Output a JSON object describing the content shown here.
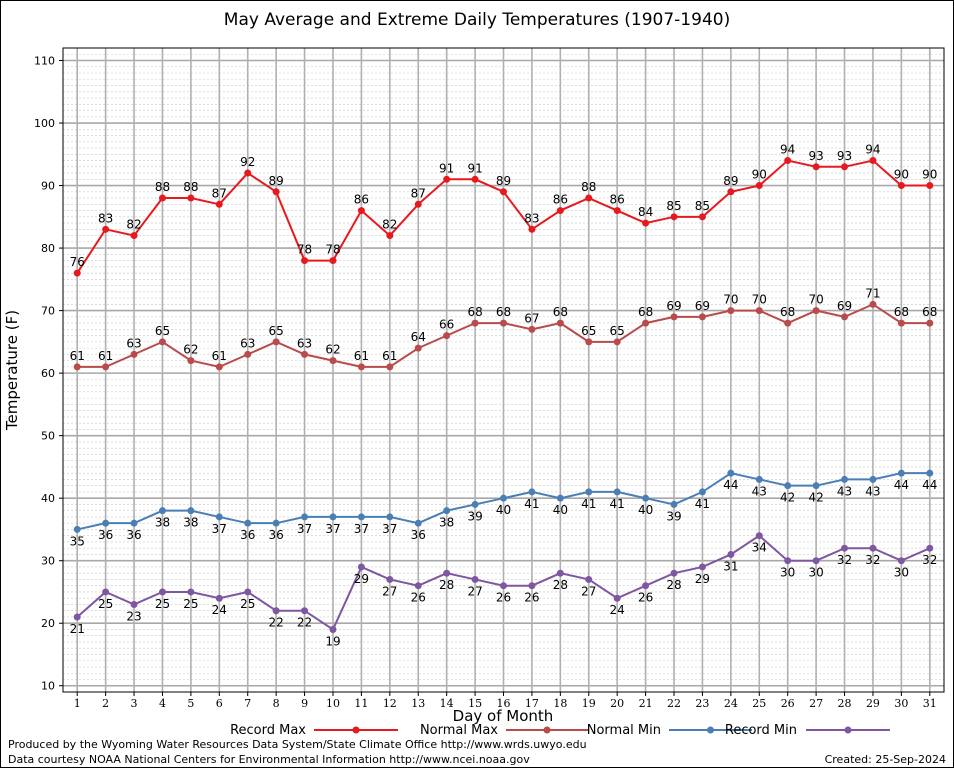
{
  "title": "May Average and Extreme Daily Temperatures (1907-1940)",
  "footer": {
    "produced_by": "Produced by the Wyoming Water Resources Data System/State Climate Office http://www.wrds.uwyo.edu",
    "courtesy": "Data courtesy NOAA National Centers for Environmental Information http://www.ncei.noaa.gov",
    "created": "Created:  25-Sep-2024"
  },
  "chart_data": {
    "type": "line",
    "title": "May Average and Extreme Daily Temperatures (1907-1940)",
    "xlabel": "Day of Month",
    "ylabel": "Temperature (F)",
    "x": [
      1,
      2,
      3,
      4,
      5,
      6,
      7,
      8,
      9,
      10,
      11,
      12,
      13,
      14,
      15,
      16,
      17,
      18,
      19,
      20,
      21,
      22,
      23,
      24,
      25,
      26,
      27,
      28,
      29,
      30,
      31
    ],
    "xlim": [
      0.5,
      31.5
    ],
    "ylim": [
      9,
      112
    ],
    "yticks": [
      10,
      20,
      30,
      40,
      50,
      60,
      70,
      80,
      90,
      100,
      110
    ],
    "grid": true,
    "legend_position": "bottom",
    "series": [
      {
        "name": "Record Max",
        "color": "#e8191e",
        "values": [
          76,
          83,
          82,
          88,
          88,
          87,
          92,
          89,
          78,
          78,
          86,
          82,
          87,
          91,
          91,
          89,
          83,
          86,
          88,
          86,
          84,
          85,
          85,
          89,
          90,
          94,
          93,
          93,
          94,
          90,
          90
        ]
      },
      {
        "name": "Normal Max",
        "color": "#b84b4b",
        "values": [
          61,
          61,
          63,
          65,
          62,
          61,
          63,
          65,
          63,
          62,
          61,
          61,
          64,
          66,
          68,
          68,
          67,
          68,
          65,
          65,
          68,
          69,
          69,
          70,
          70,
          68,
          70,
          69,
          71,
          68,
          68
        ]
      },
      {
        "name": "Normal Min",
        "color": "#4a7fb5",
        "values": [
          35,
          36,
          36,
          38,
          38,
          37,
          36,
          36,
          37,
          37,
          37,
          37,
          36,
          38,
          39,
          40,
          41,
          40,
          41,
          41,
          40,
          39,
          41,
          44,
          43,
          42,
          42,
          43,
          43,
          44,
          44
        ]
      },
      {
        "name": "Record Min",
        "color": "#7e57a0",
        "values": [
          21,
          25,
          23,
          25,
          25,
          24,
          25,
          22,
          22,
          19,
          29,
          27,
          26,
          28,
          27,
          26,
          26,
          28,
          27,
          24,
          26,
          28,
          29,
          31,
          34,
          30,
          30,
          32,
          32,
          30,
          32
        ]
      }
    ]
  }
}
